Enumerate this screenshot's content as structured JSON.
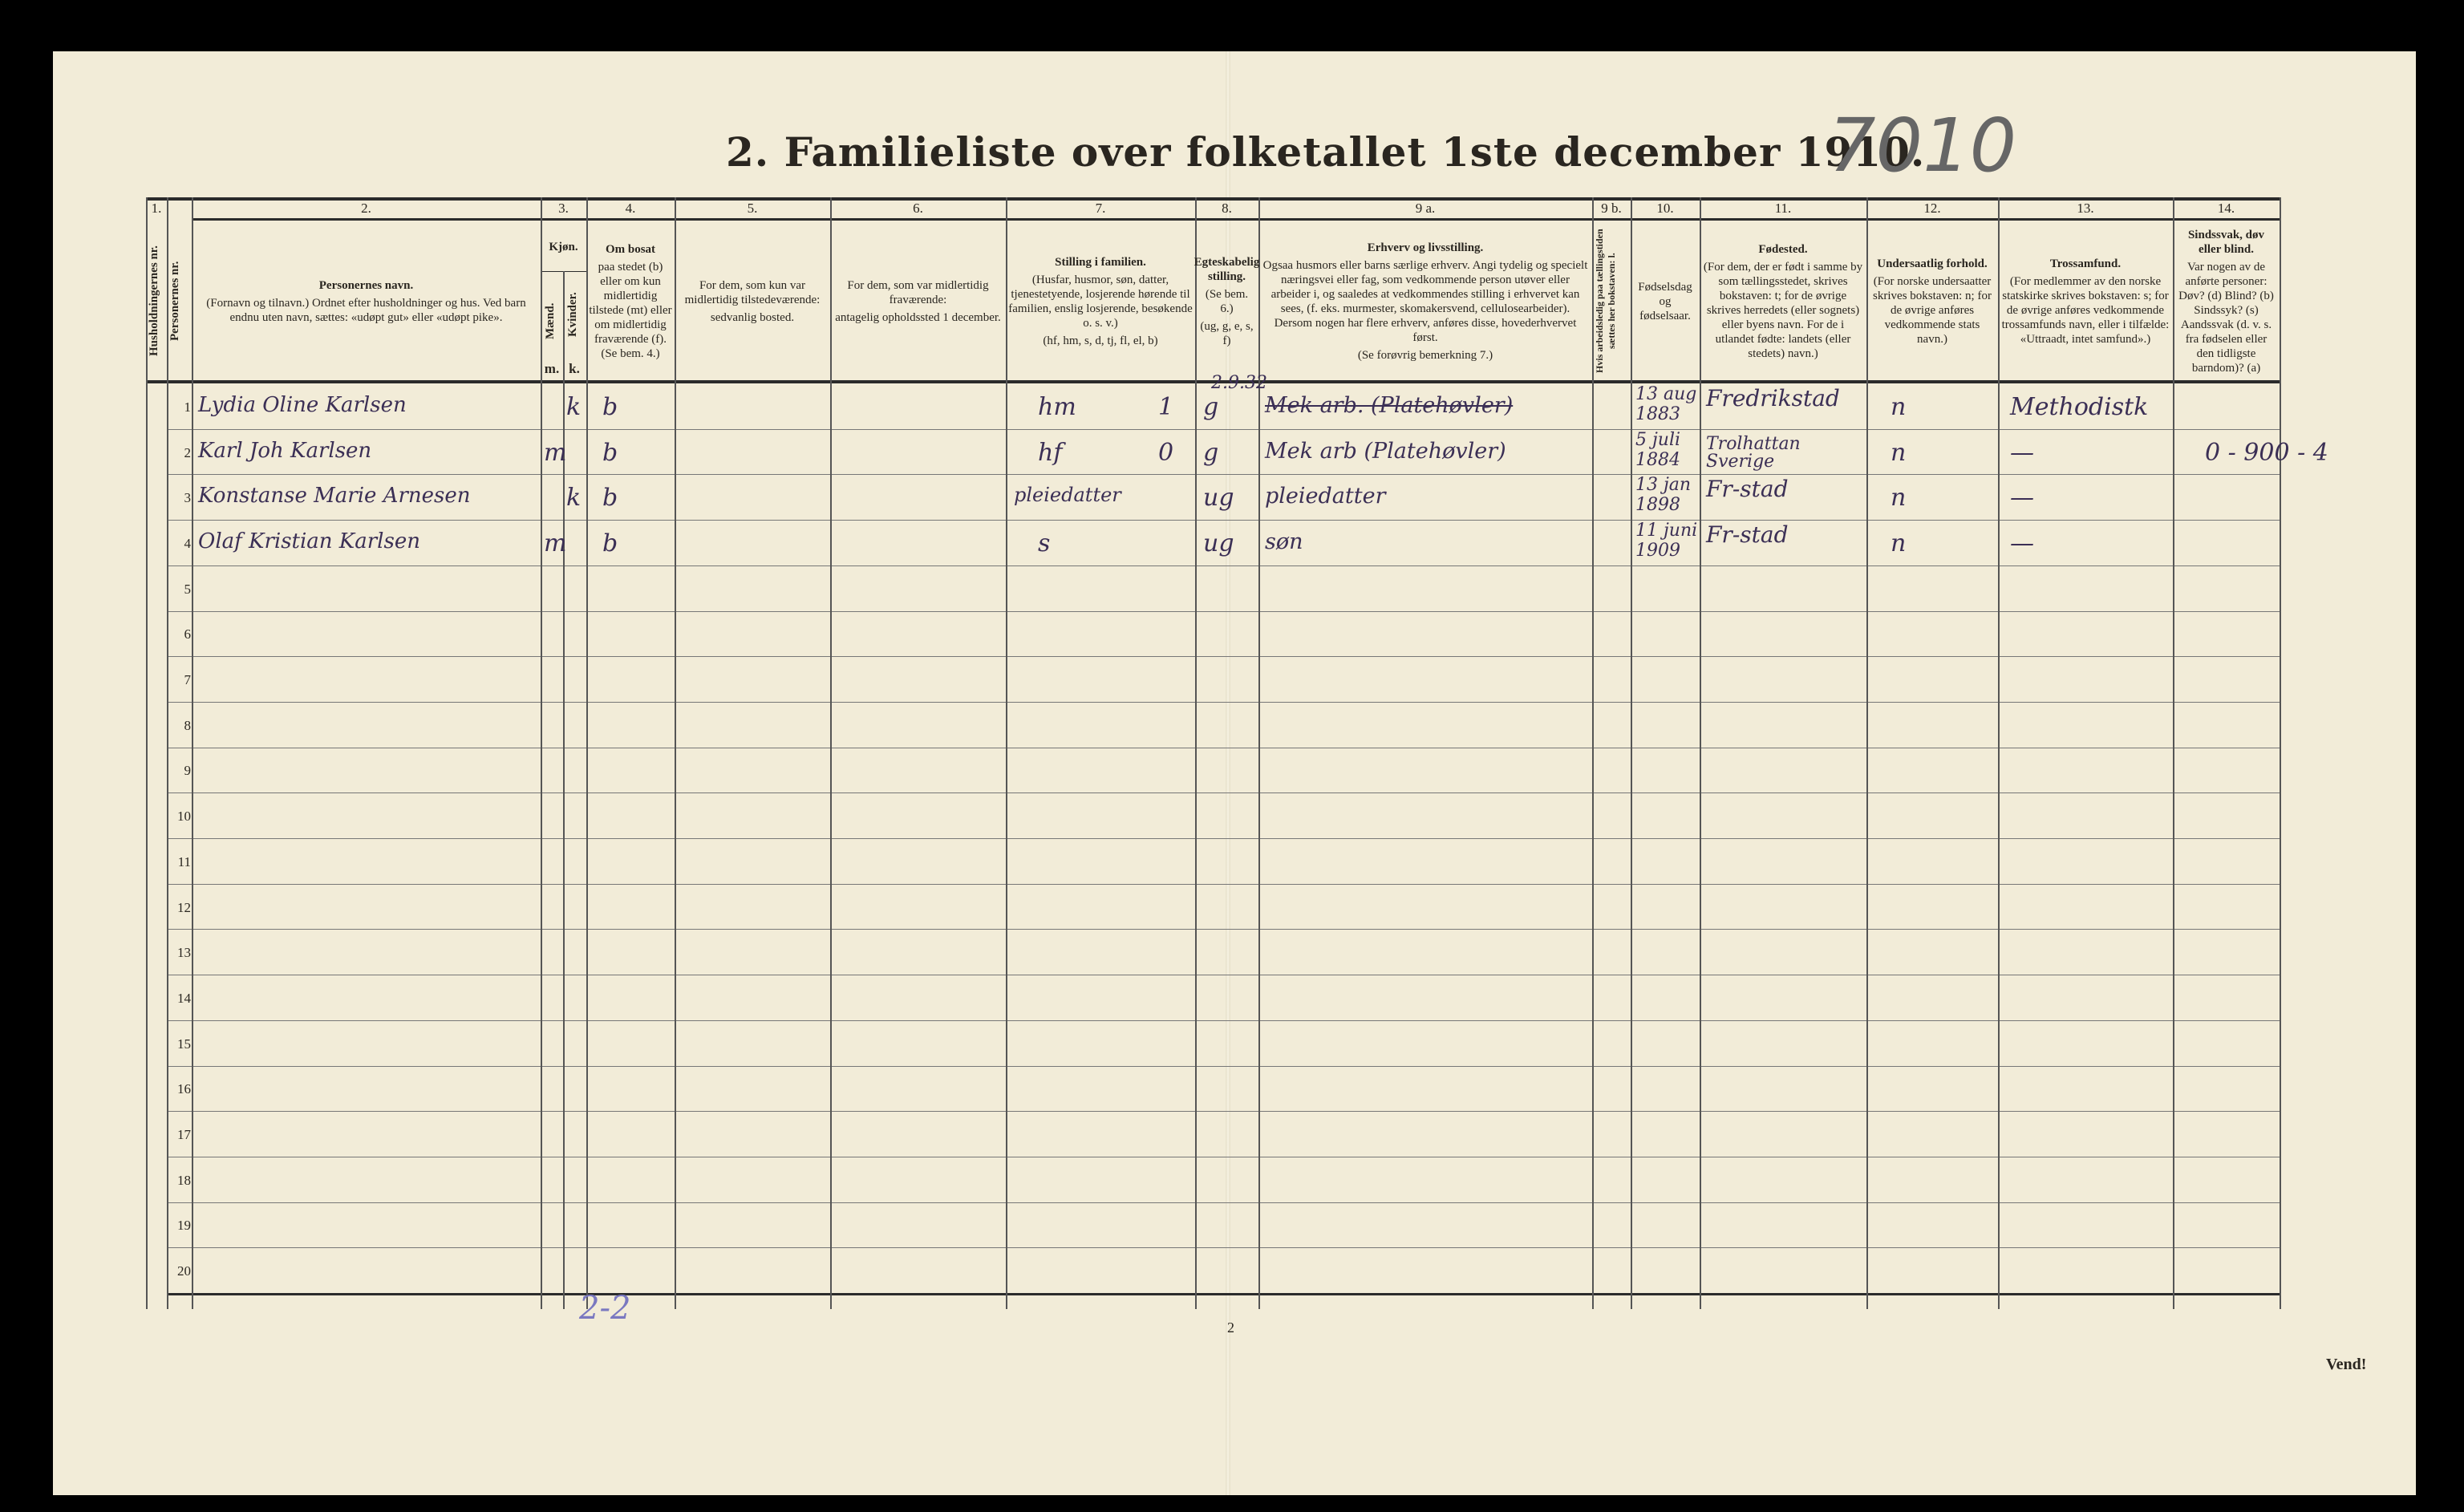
{
  "document": {
    "title": "2. Familieliste over folketallet 1ste december 1910.",
    "archive_number": "7010",
    "page_number": "2",
    "turn_over": "Vend!",
    "bottom_note": "2-2"
  },
  "columns": [
    {
      "num": "1.",
      "vertical_label": "Husholdningernes nr."
    },
    {
      "num": "",
      "vertical_label": "Personernes nr."
    },
    {
      "num": "2.",
      "heading": "Personernes navn.",
      "text": "(Fornavn og tilnavn.) Ordnet efter husholdninger og hus. Ved barn endnu uten navn, sættes: «udøpt gut» eller «udøpt pike»."
    },
    {
      "num": "3.",
      "heading": "Kjøn.",
      "sub_m": "Mænd.",
      "sub_k": "Kvinder.",
      "m": "m.",
      "k": "k."
    },
    {
      "num": "4.",
      "heading": "Om bosat",
      "text": "paa stedet (b) eller om kun midlertidig tilstede (mt) eller om midlertidig fraværende (f). (Se bem. 4.)"
    },
    {
      "num": "5.",
      "text": "For dem, som kun var midlertidig tilstedeværende:",
      "text2": "sedvanlig bosted."
    },
    {
      "num": "6.",
      "text": "For dem, som var midlertidig fraværende:",
      "text2": "antagelig opholdssted 1 december."
    },
    {
      "num": "7.",
      "heading": "Stilling i familien.",
      "text": "(Husfar, husmor, søn, datter, tjenestetyende, losjerende hørende til familien, enslig losjerende, besøkende o. s. v.)",
      "text2": "(hf, hm, s, d, tj, fl, el, b)"
    },
    {
      "num": "8.",
      "heading": "Egteskabelig stilling.",
      "text": "(Se bem. 6.)",
      "text2": "(ug, g, e, s, f)"
    },
    {
      "num": "9 a.",
      "heading": "Erhverv og livsstilling.",
      "text": "Ogsaa husmors eller barns særlige erhverv. Angi tydelig og specielt næringsvei eller fag, som vedkommende person utøver eller arbeider i, og saaledes at vedkommendes stilling i erhvervet kan sees, (f. eks. murmester, skomakersvend, cellulosearbeider). Dersom nogen har flere erhverv, anføres disse, hovederhvervet først.",
      "text2": "(Se forøvrig bemerkning 7.)"
    },
    {
      "num": "9 b.",
      "vertical_label": "Hvis arbeidsledig paa tællingstiden sættes her bokstaven: l."
    },
    {
      "num": "10.",
      "text": "Fødselsdag og fødselsaar."
    },
    {
      "num": "11.",
      "heading": "Fødested.",
      "text": "(For dem, der er født i samme by som tællingsstedet, skrives bokstaven: t; for de øvrige skrives herredets (eller sognets) eller byens navn. For de i utlandet fødte: landets (eller stedets) navn.)"
    },
    {
      "num": "12.",
      "heading": "Undersaatlig forhold.",
      "text": "(For norske undersaatter skrives bokstaven: n; for de øvrige anføres vedkommende stats navn.)"
    },
    {
      "num": "13.",
      "heading": "Trossamfund.",
      "text": "(For medlemmer av den norske statskirke skrives bokstaven: s; for de øvrige anføres vedkommende trossamfunds navn, eller i tilfælde: «Uttraadt, intet samfund».)"
    },
    {
      "num": "14.",
      "heading": "Sindssvak, døv eller blind.",
      "text": "Var nogen av de anførte personer: Døv? (d) Blind? (b) Sindssyk? (s) Aandssvak (d. v. s. fra fødselen eller den tidligste barndom)? (a)"
    }
  ],
  "row_numbers": [
    "1",
    "2",
    "3",
    "4",
    "5",
    "6",
    "7",
    "8",
    "9",
    "10",
    "11",
    "12",
    "13",
    "14",
    "15",
    "16",
    "17",
    "18",
    "19",
    "20"
  ],
  "rows": [
    {
      "name": "Lydia Oline Karlsen",
      "sex_k": "k",
      "residence": "b",
      "family_position": "hm",
      "mark": "1",
      "marital": "g",
      "occupation_note": "2.9.32",
      "occupation": "Mek arb. (Platehøvler)",
      "occupation_struck": true,
      "birth_day": "13 aug",
      "birth_year": "1883",
      "birthplace": "Fredrikstad",
      "citizenship": "n",
      "religion": "Methodistk",
      "note": ""
    },
    {
      "name": "Karl Joh Karlsen",
      "sex_m": "m",
      "residence": "b",
      "family_position": "hf",
      "mark": "0",
      "marital": "g",
      "occupation": "Mek arb (Platehøvler)",
      "birth_day": "5 juli",
      "birth_year": "1884",
      "birthplace": "Trolhattan Sverige",
      "citizenship": "n",
      "religion": "—",
      "note": "0 - 900 - 4"
    },
    {
      "name": "Konstanse Marie Arnesen",
      "sex_k": "k",
      "residence": "b",
      "family_position": "pleiedatter",
      "marital": "ug",
      "occupation": "pleiedatter",
      "birth_day": "13 jan",
      "birth_year": "1898",
      "birthplace": "Fr-stad",
      "citizenship": "n",
      "religion": "—"
    },
    {
      "name": "Olaf Kristian Karlsen",
      "sex_m": "m",
      "residence": "b",
      "family_position": "s",
      "marital": "ug",
      "occupation": "søn",
      "birth_day": "11 juni",
      "birth_year": "1909",
      "birthplace": "Fr-stad",
      "citizenship": "n",
      "religion": "—"
    }
  ]
}
